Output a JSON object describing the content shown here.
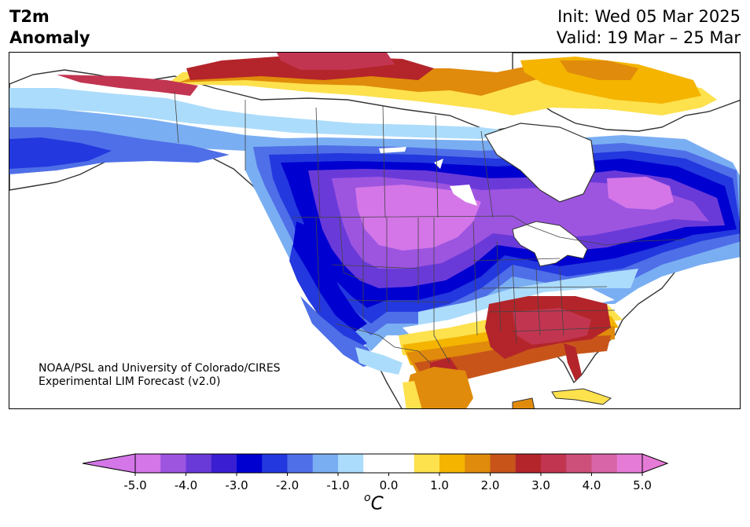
{
  "header": {
    "title_line1": "T2m",
    "title_line2": "Anomaly",
    "init": "Init: Wed 05 Mar 2025",
    "valid": "Valid: 19 Mar – 25 Mar"
  },
  "credit": {
    "line1": "NOAA/PSL and University of Colorado/CIRES",
    "line2": "Experimental LIM Forecast (v2.0)"
  },
  "colorbar": {
    "unit_prefix": "o",
    "unit_symbol": "C",
    "tick_labels": [
      "-5.0",
      "-4.0",
      "-3.0",
      "-2.0",
      "-1.0",
      "0.0",
      "1.0",
      "2.0",
      "3.0",
      "4.0",
      "5.0"
    ],
    "colors": [
      "#d476e8",
      "#9d55e0",
      "#6a3ad9",
      "#3a1fd2",
      "#0000d0",
      "#2338de",
      "#4f6fe8",
      "#7aaef2",
      "#acdcfb",
      "#ffffff",
      "#ffffff",
      "#fde14d",
      "#f4b400",
      "#e08b0b",
      "#c8541a",
      "#b3252a",
      "#c23550",
      "#cc5079",
      "#d865a8",
      "#e57bd6"
    ],
    "extend_min_color": "#d476e8",
    "extend_max_color": "#e57bd6"
  },
  "map": {
    "ocean_color": "#ffffff",
    "land_outline_color": "#333333",
    "region_colors": {
      "strong_cold": "#d476e8",
      "cold_4": "#9d55e0",
      "cold_3": "#6a3ad9",
      "cold_2": "#0000d0",
      "cold_15": "#2338de",
      "cold_1": "#4f6fe8",
      "cold_05": "#7aaef2",
      "cool": "#acdcfb",
      "warm_05": "#fde14d",
      "warm_1": "#f4b400",
      "warm_2": "#e08b0b",
      "warm_25": "#c8541a",
      "warm_3": "#b3252a",
      "warm_35": "#c23550"
    }
  }
}
